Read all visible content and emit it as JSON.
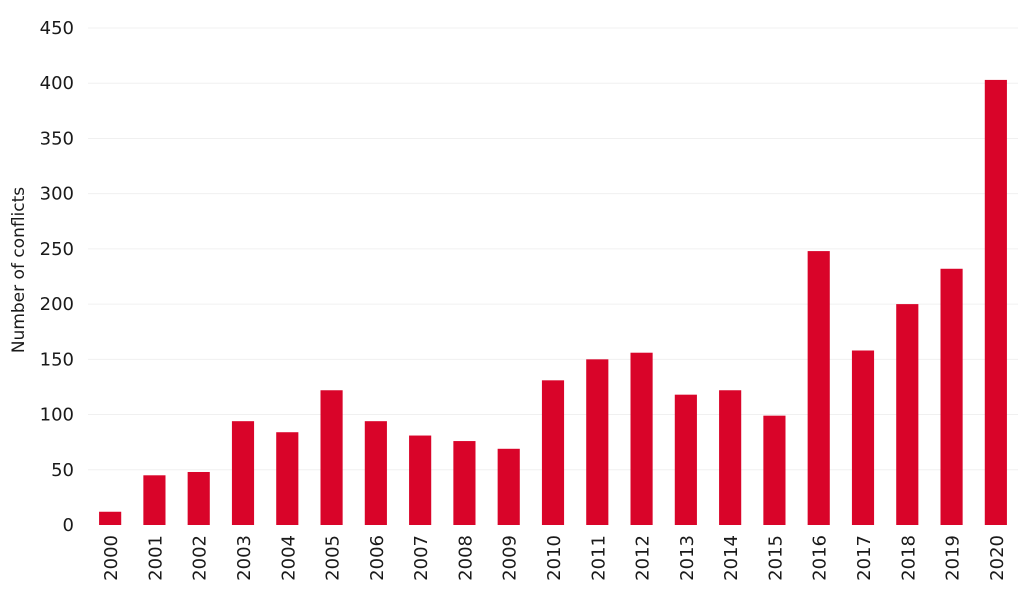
{
  "chart_data": {
    "type": "bar",
    "title": "",
    "xlabel": "",
    "ylabel": "Number of conflicts",
    "ylim": [
      0,
      450
    ],
    "yticks": [
      0,
      50,
      100,
      150,
      200,
      250,
      300,
      350,
      400,
      450
    ],
    "grid": true,
    "legend": "none",
    "bar_color": "#d90429",
    "grid_color": "#f0f0f0",
    "text_color": "#1a1a1a",
    "categories": [
      "2000",
      "2001",
      "2002",
      "2003",
      "2004",
      "2005",
      "2006",
      "2007",
      "2008",
      "2009",
      "2010",
      "2011",
      "2012",
      "2013",
      "2014",
      "2015",
      "2016",
      "2017",
      "2018",
      "2019",
      "2020"
    ],
    "values": [
      12,
      45,
      48,
      94,
      84,
      122,
      94,
      81,
      76,
      69,
      131,
      150,
      156,
      118,
      122,
      99,
      248,
      158,
      200,
      232,
      403
    ]
  }
}
